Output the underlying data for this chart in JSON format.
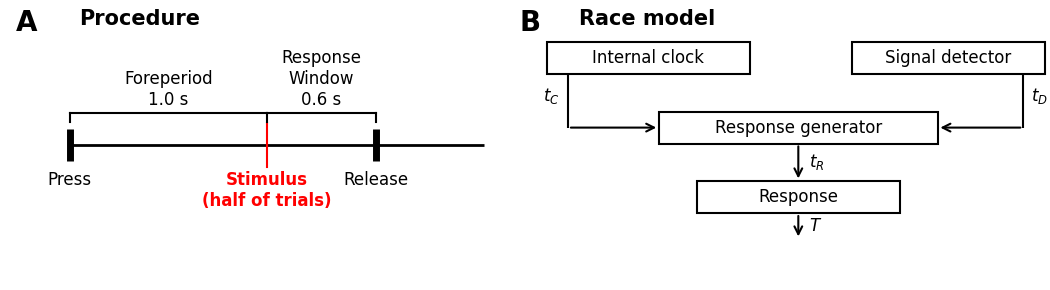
{
  "panel_A_title": "Procedure",
  "panel_B_title": "Race model",
  "label_A": "A",
  "label_B": "B",
  "foreperiod_label": "Foreperiod\n1.0 s",
  "response_window_label": "Response\nWindow\n0.6 s",
  "press_label": "Press",
  "release_label": "Release",
  "stimulus_label": "Stimulus\n(half of trials)",
  "box_internal_clock": "Internal clock",
  "box_signal_detector": "Signal detector",
  "box_response_generator": "Response generator",
  "box_response": "Response",
  "red_color": "#ff0000",
  "black_color": "#000000",
  "bg_color": "#ffffff",
  "font_size_title": 15,
  "font_size_label": 12,
  "font_size_panel": 20
}
